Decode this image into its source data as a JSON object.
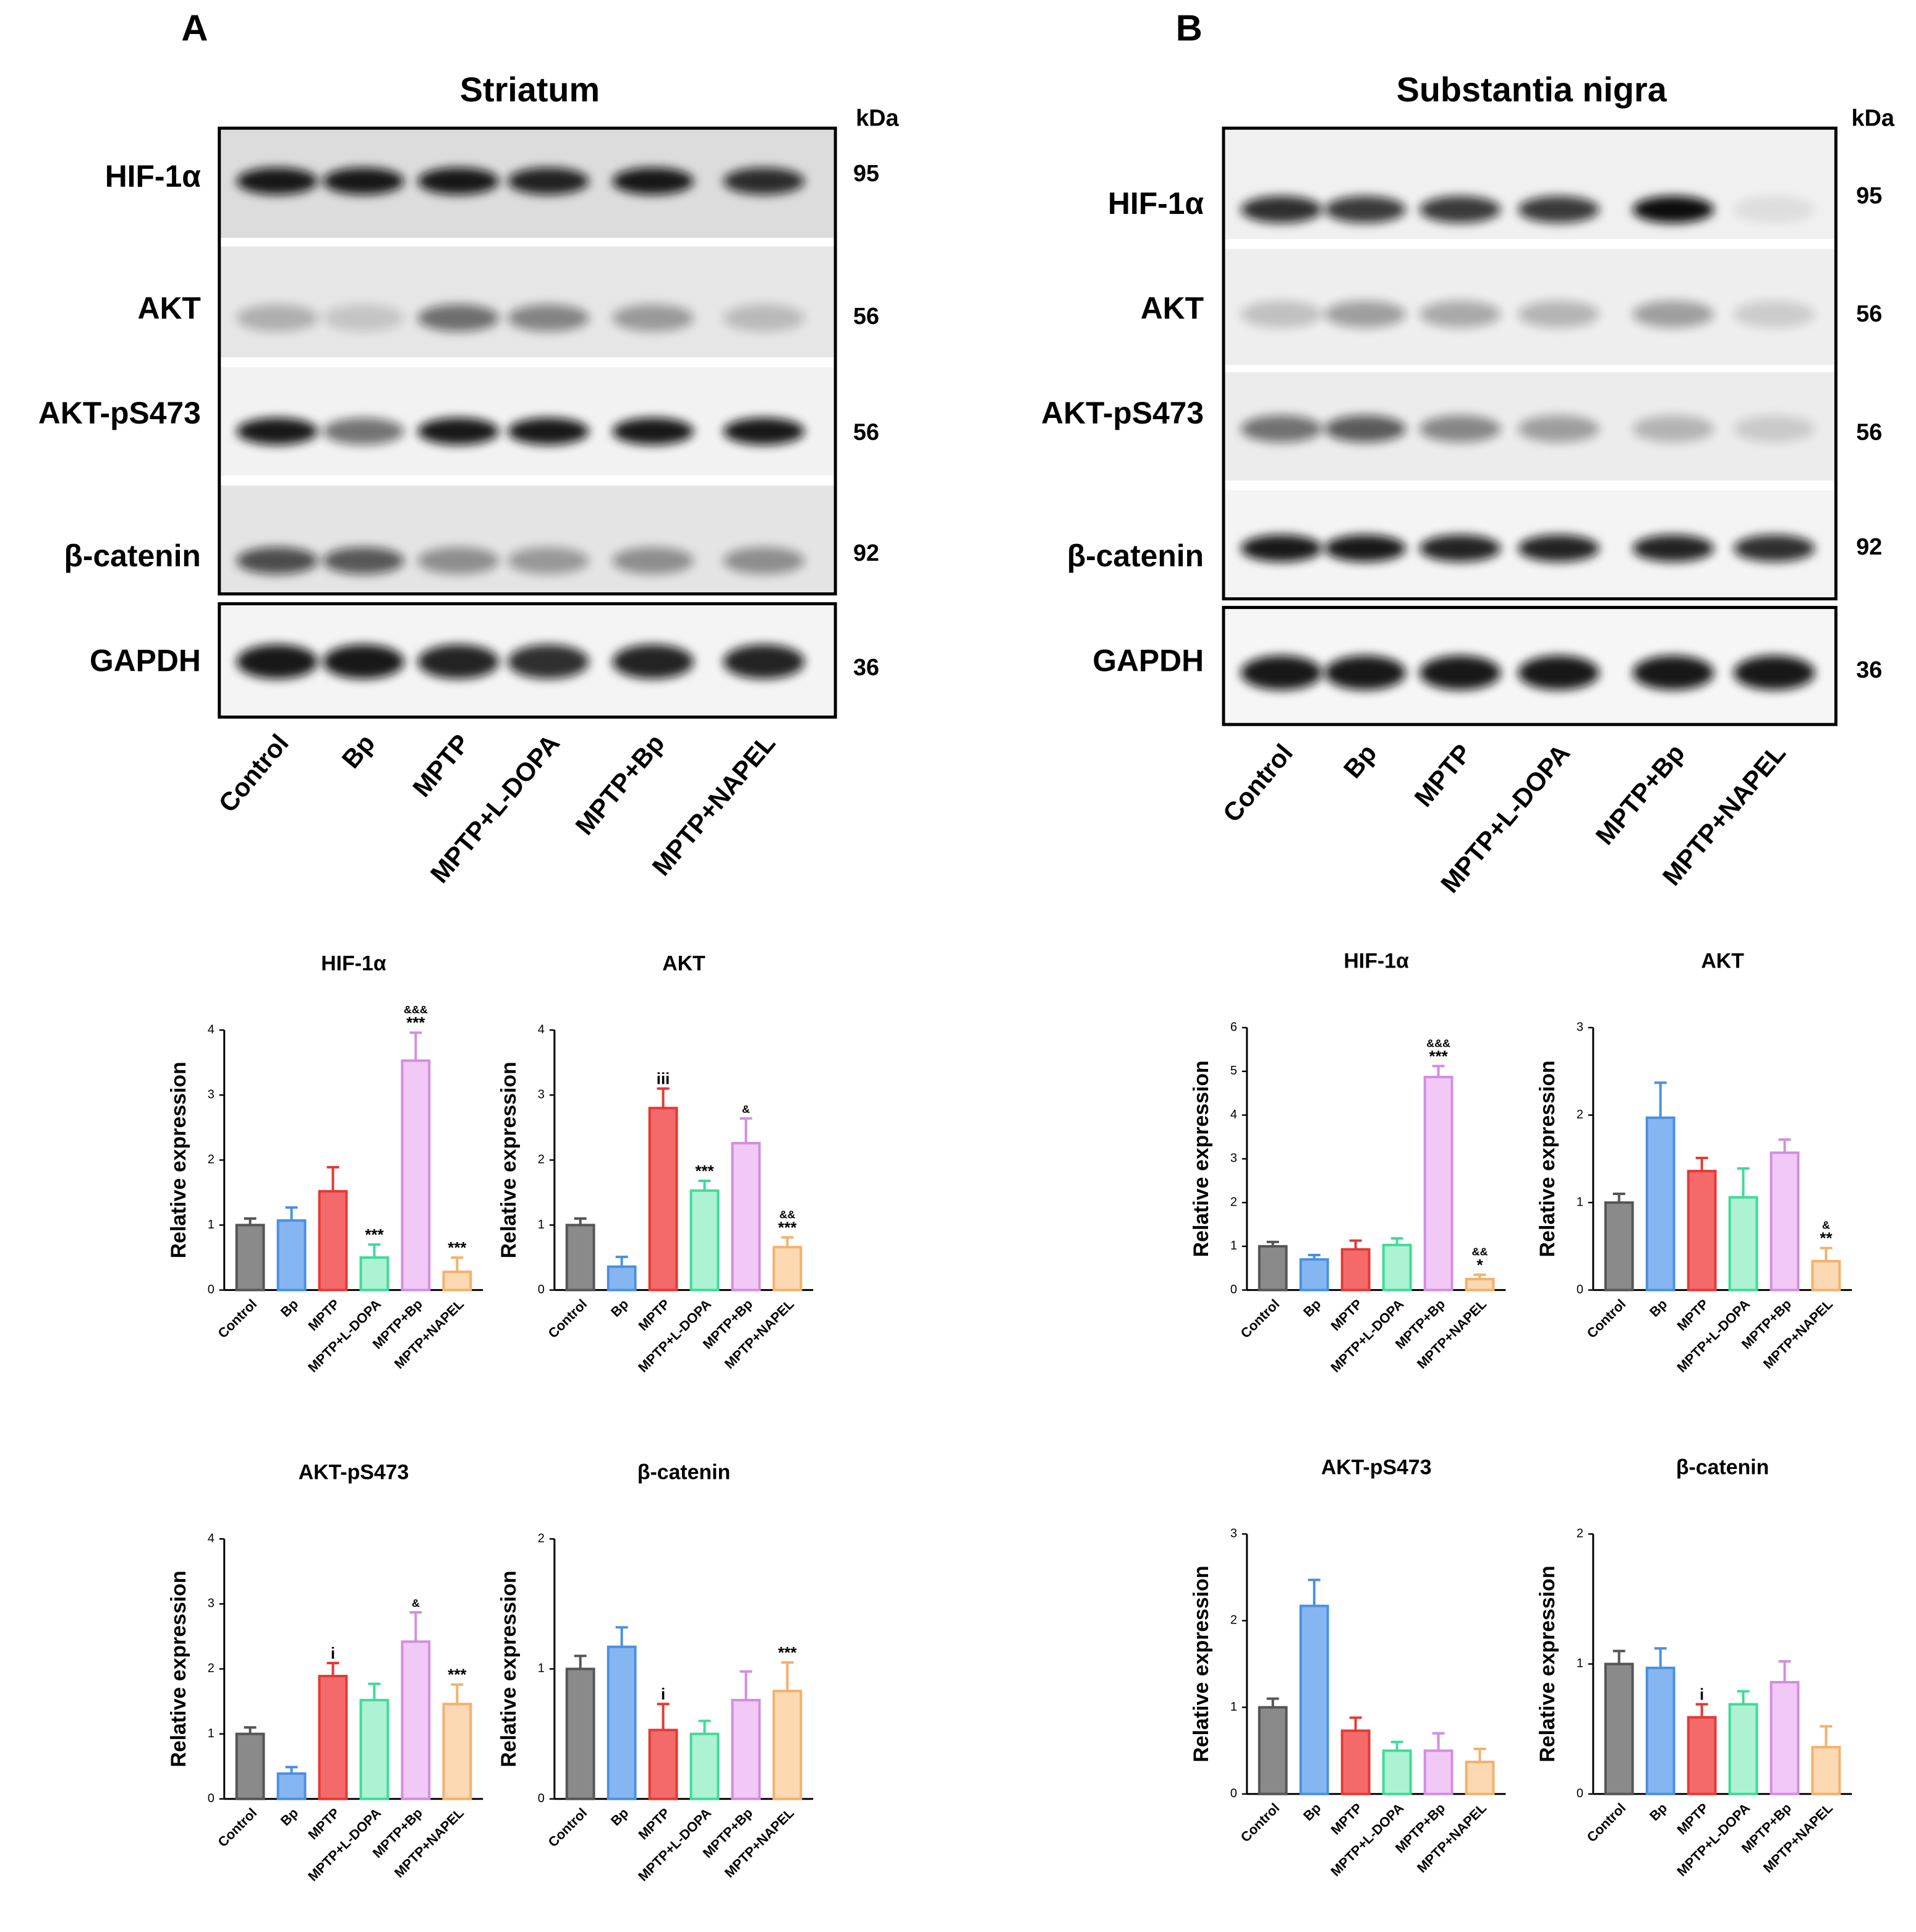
{
  "figure": {
    "panels": [
      {
        "label": "A",
        "title": "Striatum",
        "kda_unit": "kDa",
        "blots": [
          {
            "name": "HIF-1α",
            "kda": 95
          },
          {
            "name": "AKT",
            "kda": 56
          },
          {
            "name": "AKT-pS473",
            "kda": 56
          },
          {
            "name": "β-catenin",
            "kda": 92
          },
          {
            "name": "GAPDH",
            "kda": 36
          }
        ],
        "lanes": [
          "Control",
          "Bp",
          "MPTP",
          "MPTP+L-DOPA",
          "MPTP+Bp",
          "MPTP+NAPEL"
        ]
      },
      {
        "label": "B",
        "title": "Substantia nigra",
        "kda_unit": "kDa",
        "blots": [
          {
            "name": "HIF-1α",
            "kda": 95
          },
          {
            "name": "AKT",
            "kda": 56
          },
          {
            "name": "AKT-pS473",
            "kda": 56
          },
          {
            "name": "β-catenin",
            "kda": 92
          },
          {
            "name": "GAPDH",
            "kda": 36
          }
        ],
        "lanes": [
          "Control",
          "Bp",
          "MPTP",
          "MPTP+L-DOPA",
          "MPTP+Bp",
          "MPTP+NAPEL"
        ]
      }
    ]
  },
  "chart_data": [
    {
      "type": "bar",
      "title": "HIF-1α",
      "ylabel": "Relative expression",
      "categories": [
        "Control",
        "Bp",
        "MPTP",
        "MPTP+L-DOPA",
        "MPTP+Bp",
        "MPTP+NAPEL"
      ],
      "values": [
        1.0,
        1.07,
        1.52,
        0.5,
        3.53,
        0.28
      ],
      "errors": [
        0.1,
        0.2,
        0.37,
        0.2,
        0.43,
        0.22
      ],
      "annotations": [
        [],
        [],
        [],
        [
          "***"
        ],
        [
          "&&&",
          "***"
        ],
        [
          "***"
        ]
      ],
      "colors": [
        "#8a8a8a",
        "#86b6f2",
        "#f46a6a",
        "#aef2d4",
        "#f1c8f6",
        "#fcd9b2"
      ],
      "edge_colors": [
        "#555555",
        "#4a90e2",
        "#e53935",
        "#3ddc97",
        "#d18ee0",
        "#f5b06a"
      ],
      "ylim": [
        0,
        4
      ],
      "yticks": [
        0,
        1,
        2,
        3,
        4
      ]
    },
    {
      "type": "bar",
      "title": "AKT",
      "ylabel": "Relative expression",
      "categories": [
        "Control",
        "Bp",
        "MPTP",
        "MPTP+L-DOPA",
        "MPTP+Bp",
        "MPTP+NAPEL"
      ],
      "values": [
        1.0,
        0.36,
        2.8,
        1.53,
        2.26,
        0.66
      ],
      "errors": [
        0.1,
        0.15,
        0.3,
        0.15,
        0.38,
        0.15
      ],
      "annotations": [
        [],
        [],
        [
          "iii"
        ],
        [
          "***"
        ],
        [
          "&"
        ],
        [
          "&&",
          "***"
        ]
      ],
      "colors": [
        "#8a8a8a",
        "#86b6f2",
        "#f46a6a",
        "#aef2d4",
        "#f1c8f6",
        "#fcd9b2"
      ],
      "edge_colors": [
        "#555555",
        "#4a90e2",
        "#e53935",
        "#3ddc97",
        "#d18ee0",
        "#f5b06a"
      ],
      "ylim": [
        0,
        4
      ],
      "yticks": [
        0,
        1,
        2,
        3,
        4
      ]
    },
    {
      "type": "bar",
      "title": "AKT-pS473",
      "ylabel": "Relative expression",
      "categories": [
        "Control",
        "Bp",
        "MPTP",
        "MPTP+L-DOPA",
        "MPTP+Bp",
        "MPTP+NAPEL"
      ],
      "values": [
        1.0,
        0.39,
        1.89,
        1.52,
        2.42,
        1.46
      ],
      "errors": [
        0.1,
        0.1,
        0.2,
        0.25,
        0.45,
        0.3
      ],
      "annotations": [
        [],
        [],
        [
          "i"
        ],
        [],
        [
          "&"
        ],
        [
          "***"
        ]
      ],
      "colors": [
        "#8a8a8a",
        "#86b6f2",
        "#f46a6a",
        "#aef2d4",
        "#f1c8f6",
        "#fcd9b2"
      ],
      "edge_colors": [
        "#555555",
        "#4a90e2",
        "#e53935",
        "#3ddc97",
        "#d18ee0",
        "#f5b06a"
      ],
      "ylim": [
        0,
        4
      ],
      "yticks": [
        0,
        1,
        2,
        3,
        4
      ]
    },
    {
      "type": "bar",
      "title": "β-catenin",
      "ylabel": "Relative expression",
      "categories": [
        "Control",
        "Bp",
        "MPTP",
        "MPTP+L-DOPA",
        "MPTP+Bp",
        "MPTP+NAPEL"
      ],
      "values": [
        1.0,
        1.17,
        0.53,
        0.5,
        0.76,
        0.83
      ],
      "errors": [
        0.1,
        0.15,
        0.2,
        0.1,
        0.22,
        0.22
      ],
      "annotations": [
        [],
        [],
        [
          "i"
        ],
        [],
        [],
        [
          "***"
        ]
      ],
      "colors": [
        "#8a8a8a",
        "#86b6f2",
        "#f46a6a",
        "#aef2d4",
        "#f1c8f6",
        "#fcd9b2"
      ],
      "edge_colors": [
        "#555555",
        "#4a90e2",
        "#e53935",
        "#3ddc97",
        "#d18ee0",
        "#f5b06a"
      ],
      "ylim": [
        0,
        2
      ],
      "yticks": [
        0,
        1,
        2
      ]
    },
    {
      "type": "bar",
      "title": "HIF-1α",
      "ylabel": "Relative expression",
      "categories": [
        "Control",
        "Bp",
        "MPTP",
        "MPTP+L-DOPA",
        "MPTP+Bp",
        "MPTP+NAPEL"
      ],
      "values": [
        1.0,
        0.7,
        0.93,
        1.03,
        4.87,
        0.25
      ],
      "errors": [
        0.1,
        0.1,
        0.2,
        0.15,
        0.25,
        0.1
      ],
      "annotations": [
        [],
        [],
        [],
        [],
        [
          "&&&",
          "***"
        ],
        [
          "&&",
          "*"
        ]
      ],
      "colors": [
        "#8a8a8a",
        "#86b6f2",
        "#f46a6a",
        "#aef2d4",
        "#f1c8f6",
        "#fcd9b2"
      ],
      "edge_colors": [
        "#555555",
        "#4a90e2",
        "#e53935",
        "#3ddc97",
        "#d18ee0",
        "#f5b06a"
      ],
      "ylim": [
        0,
        6
      ],
      "yticks": [
        0,
        1,
        2,
        3,
        4,
        5,
        6
      ]
    },
    {
      "type": "bar",
      "title": "AKT",
      "ylabel": "Relative expression",
      "categories": [
        "Control",
        "Bp",
        "MPTP",
        "MPTP+L-DOPA",
        "MPTP+Bp",
        "MPTP+NAPEL"
      ],
      "values": [
        1.0,
        1.97,
        1.36,
        1.06,
        1.57,
        0.33
      ],
      "errors": [
        0.1,
        0.4,
        0.15,
        0.33,
        0.15,
        0.15
      ],
      "annotations": [
        [],
        [],
        [],
        [],
        [],
        [
          "&",
          "**"
        ]
      ],
      "colors": [
        "#8a8a8a",
        "#86b6f2",
        "#f46a6a",
        "#aef2d4",
        "#f1c8f6",
        "#fcd9b2"
      ],
      "edge_colors": [
        "#555555",
        "#4a90e2",
        "#e53935",
        "#3ddc97",
        "#d18ee0",
        "#f5b06a"
      ],
      "ylim": [
        0,
        3
      ],
      "yticks": [
        0,
        1,
        2,
        3
      ]
    },
    {
      "type": "bar",
      "title": "AKT-pS473",
      "ylabel": "Relative expression",
      "categories": [
        "Control",
        "Bp",
        "MPTP",
        "MPTP+L-DOPA",
        "MPTP+Bp",
        "MPTP+NAPEL"
      ],
      "values": [
        1.0,
        2.17,
        0.73,
        0.5,
        0.5,
        0.37
      ],
      "errors": [
        0.1,
        0.3,
        0.15,
        0.1,
        0.2,
        0.15
      ],
      "annotations": [
        [],
        [],
        [],
        [],
        [],
        []
      ],
      "colors": [
        "#8a8a8a",
        "#86b6f2",
        "#f46a6a",
        "#aef2d4",
        "#f1c8f6",
        "#fcd9b2"
      ],
      "edge_colors": [
        "#555555",
        "#4a90e2",
        "#e53935",
        "#3ddc97",
        "#d18ee0",
        "#f5b06a"
      ],
      "ylim": [
        0,
        3
      ],
      "yticks": [
        0,
        1,
        2,
        3
      ]
    },
    {
      "type": "bar",
      "title": "β-catenin",
      "ylabel": "Relative expression",
      "categories": [
        "Control",
        "Bp",
        "MPTP",
        "MPTP+L-DOPA",
        "MPTP+Bp",
        "MPTP+NAPEL"
      ],
      "values": [
        1.0,
        0.97,
        0.59,
        0.69,
        0.86,
        0.36
      ],
      "errors": [
        0.1,
        0.15,
        0.1,
        0.1,
        0.16,
        0.16
      ],
      "annotations": [
        [],
        [],
        [
          "i"
        ],
        [],
        [],
        []
      ],
      "colors": [
        "#8a8a8a",
        "#86b6f2",
        "#f46a6a",
        "#aef2d4",
        "#f1c8f6",
        "#fcd9b2"
      ],
      "edge_colors": [
        "#555555",
        "#4a90e2",
        "#e53935",
        "#3ddc97",
        "#d18ee0",
        "#f5b06a"
      ],
      "ylim": [
        0,
        2
      ],
      "yticks": [
        0,
        1,
        2
      ]
    }
  ]
}
